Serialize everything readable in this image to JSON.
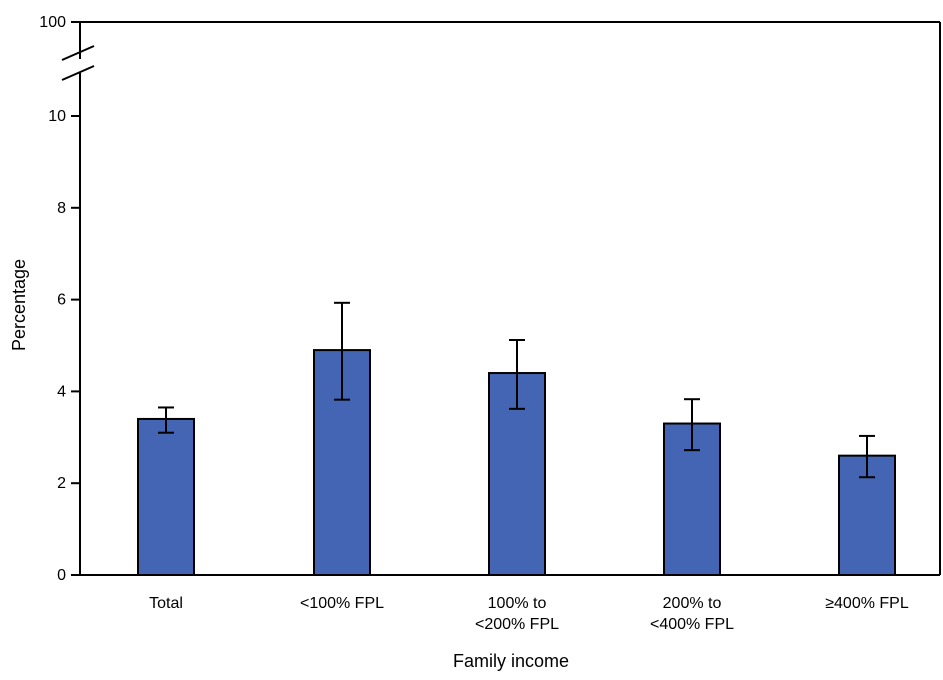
{
  "chart_data": {
    "type": "bar",
    "xlabel": "Family income",
    "ylabel": "Percentage",
    "categories": [
      [
        "Total"
      ],
      [
        "<100% FPL"
      ],
      [
        "100% to",
        "<200% FPL"
      ],
      [
        "200% to",
        "<400% FPL"
      ],
      [
        "≥400% FPL"
      ]
    ],
    "values": [
      3.4,
      4.9,
      4.4,
      3.3,
      2.6
    ],
    "error_bars": [
      {
        "low": 3.1,
        "high": 3.65
      },
      {
        "low": 3.82,
        "high": 5.93
      },
      {
        "low": 3.62,
        "high": 5.12
      },
      {
        "low": 2.72,
        "high": 3.83
      },
      {
        "low": 2.13,
        "high": 3.03
      }
    ],
    "ylim": [
      0,
      10
    ],
    "y_ticks": [
      "0",
      "2",
      "4",
      "6",
      "8",
      "10"
    ],
    "y_break_value": "100",
    "axis_break": true,
    "grid": false,
    "bar_color": "#4365b4",
    "bar_edge_color": "#000000"
  }
}
